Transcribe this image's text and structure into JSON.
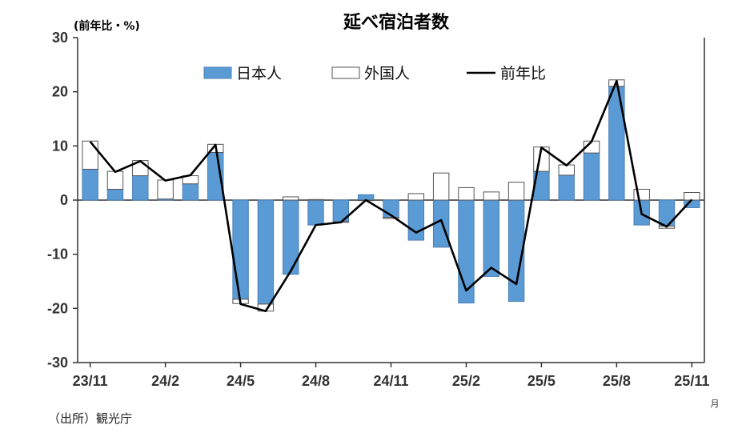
{
  "chart_data": {
    "type": "bar",
    "title": "延べ宿泊者数",
    "ylabel": "(前年比・%)",
    "x_unit": "月",
    "ylim": [
      -30,
      30
    ],
    "yticks": [
      30,
      20,
      10,
      0,
      -10,
      -20,
      -30
    ],
    "categories": [
      "23/11",
      "23/12",
      "24/1",
      "24/2",
      "24/3",
      "24/4",
      "24/5",
      "24/6",
      "24/7",
      "24/8",
      "24/9",
      "24/10",
      "24/11",
      "24/12",
      "25/1",
      "25/2",
      "25/3",
      "25/4",
      "25/5",
      "25/6",
      "25/7",
      "25/8",
      "25/9",
      "25/10",
      "25/11"
    ],
    "x_tick_labels": [
      "23/11",
      "24/2",
      "24/5",
      "24/8",
      "24/11",
      "25/2",
      "25/5",
      "25/8",
      "25/11"
    ],
    "x_tick_every": 3,
    "stacked": true,
    "series": [
      {
        "name": "日本人",
        "kind": "bar",
        "color": "#5b9bd5",
        "values": [
          5.7,
          2.0,
          4.5,
          0.2,
          3.0,
          8.8,
          -18.3,
          -19.2,
          -13.7,
          -4.6,
          -4.0,
          1.0,
          -3.2,
          -7.4,
          -8.7,
          -19.0,
          -14.1,
          -18.7,
          5.3,
          4.6,
          8.7,
          21.0,
          -4.6,
          -4.8,
          -1.4
        ]
      },
      {
        "name": "外国人",
        "kind": "bar",
        "color": "#ffffff",
        "values": [
          5.2,
          3.3,
          2.8,
          3.5,
          1.5,
          1.5,
          -0.8,
          -1.3,
          0.6,
          0.1,
          -0.1,
          -0.1,
          -0.2,
          1.2,
          5.0,
          2.3,
          1.5,
          3.3,
          4.5,
          1.9,
          2.2,
          1.2,
          2.0,
          -0.4,
          1.4
        ]
      },
      {
        "name": "前年比",
        "kind": "line",
        "color": "#000000",
        "values": [
          10.8,
          5.2,
          7.2,
          3.6,
          4.6,
          10.2,
          -19.2,
          -20.5,
          -13.1,
          -4.6,
          -4.1,
          0.0,
          -2.8,
          -6.0,
          -3.7,
          -16.7,
          -12.5,
          -15.5,
          9.7,
          6.4,
          10.8,
          22.0,
          -2.6,
          -4.9,
          0.1
        ]
      }
    ],
    "legend": {
      "position": "top",
      "items": [
        "日本人",
        "外国人",
        "前年比"
      ]
    },
    "grid": false
  },
  "source": "（出所）観光庁"
}
